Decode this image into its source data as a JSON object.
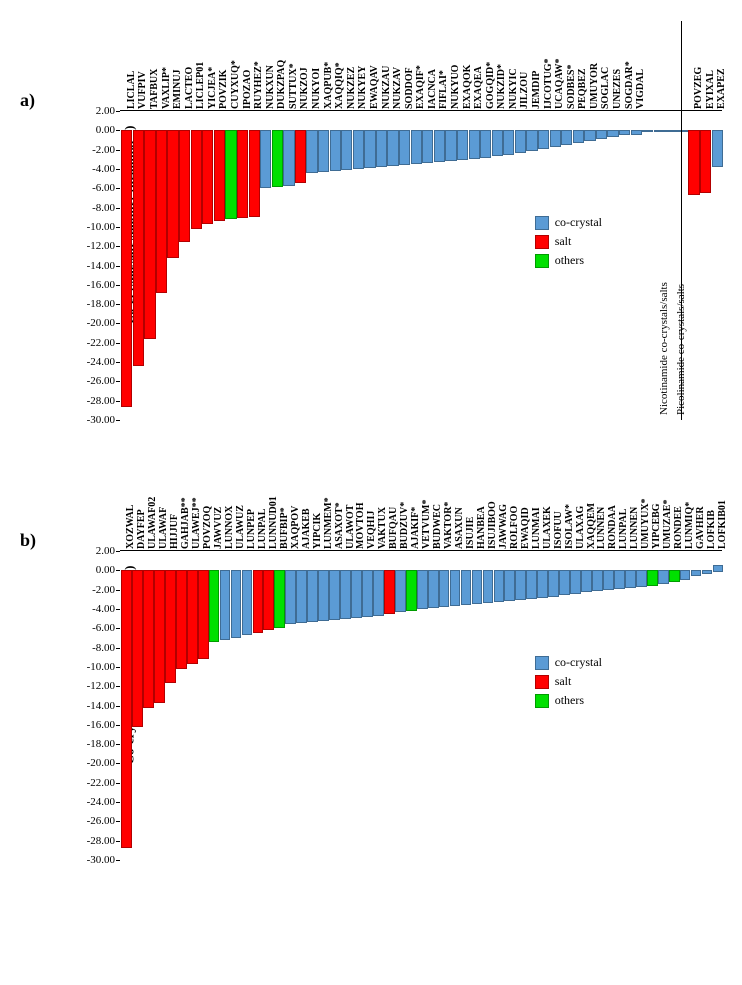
{
  "colors": {
    "co_crystal": "#5b9bd5",
    "salt": "#ff0000",
    "others": "#00e000",
    "axis": "#000000",
    "background": "#ffffff"
  },
  "legend": [
    {
      "label": "co-crystal",
      "color_key": "co_crystal"
    },
    {
      "label": "salt",
      "color_key": "salt"
    },
    {
      "label": "others",
      "color_key": "others"
    }
  ],
  "y_axis": {
    "label": "Co-crystal/salt stability (kcal.mol⁻¹)",
    "min": -30,
    "max": 2,
    "ticks": [
      2.0,
      0.0,
      -2.0,
      -4.0,
      -6.0,
      -8.0,
      -10.0,
      -12.0,
      -14.0,
      -16.0,
      -18.0,
      -20.0,
      -22.0,
      -24.0,
      -26.0,
      -28.0,
      -30.0
    ],
    "label_fontsize": 13,
    "tick_fontsize": 11
  },
  "category_label_fontsize": 10,
  "chart_a": {
    "panel_label": "a)",
    "divider_after_index": 48,
    "section_labels": [
      {
        "text": "Nicotinamide co-crystals/salts",
        "at_index": 47.5
      },
      {
        "text": "Picolinamide co-crystals/salts",
        "at_index": 49
      }
    ],
    "bars": [
      {
        "label": "LICLAL",
        "value": -28.4,
        "cat": "salt"
      },
      {
        "label": "VUFPIV",
        "value": -24.2,
        "cat": "salt"
      },
      {
        "label": "TAFBUX",
        "value": -21.4,
        "cat": "salt"
      },
      {
        "label": "VAXLIP*",
        "value": -16.6,
        "cat": "salt"
      },
      {
        "label": "EMINUJ",
        "value": -13.0,
        "cat": "salt"
      },
      {
        "label": "LACTEO",
        "value": -11.4,
        "cat": "salt"
      },
      {
        "label": "LICLEP01",
        "value": -10.0,
        "cat": "salt"
      },
      {
        "label": "YICJEA*",
        "value": -9.5,
        "cat": "salt"
      },
      {
        "label": "POVZIK",
        "value": -9.2,
        "cat": "salt"
      },
      {
        "label": "CUYXUQ*",
        "value": -9.0,
        "cat": "others"
      },
      {
        "label": "IPOZAO",
        "value": -8.9,
        "cat": "salt"
      },
      {
        "label": "RUYHEZ*",
        "value": -8.8,
        "cat": "salt"
      },
      {
        "label": "NUKXUN",
        "value": -5.8,
        "cat": "co_crystal"
      },
      {
        "label": "DUKZPAQ",
        "value": -5.7,
        "cat": "others"
      },
      {
        "label": "SUTTUX*",
        "value": -5.6,
        "cat": "co_crystal"
      },
      {
        "label": "NUKZOJ",
        "value": -5.2,
        "cat": "salt"
      },
      {
        "label": "NUKYOI",
        "value": -4.2,
        "cat": "co_crystal"
      },
      {
        "label": "XAQPUB*",
        "value": -4.1,
        "cat": "co_crystal"
      },
      {
        "label": "XAQQIQ*",
        "value": -4.0,
        "cat": "co_crystal"
      },
      {
        "label": "NUKZEZ",
        "value": -3.9,
        "cat": "co_crystal"
      },
      {
        "label": "NUKYEY",
        "value": -3.8,
        "cat": "co_crystal"
      },
      {
        "label": "EWAQAV",
        "value": -3.7,
        "cat": "co_crystal"
      },
      {
        "label": "NUKZAU",
        "value": -3.6,
        "cat": "co_crystal"
      },
      {
        "label": "NUKZAV",
        "value": -3.5,
        "cat": "co_crystal"
      },
      {
        "label": "SODDOF",
        "value": -3.4,
        "cat": "co_crystal"
      },
      {
        "label": "EXAQIF*",
        "value": -3.3,
        "cat": "co_crystal"
      },
      {
        "label": "IACNCA",
        "value": -3.2,
        "cat": "co_crystal"
      },
      {
        "label": "FIFLAI*",
        "value": -3.1,
        "cat": "co_crystal"
      },
      {
        "label": "NUKYUO",
        "value": -3.0,
        "cat": "co_crystal"
      },
      {
        "label": "EXAQOK",
        "value": -2.9,
        "cat": "co_crystal"
      },
      {
        "label": "EXAQEA",
        "value": -2.8,
        "cat": "co_crystal"
      },
      {
        "label": "GOGQID*",
        "value": -2.7,
        "cat": "co_crystal"
      },
      {
        "label": "NUKZID*",
        "value": -2.5,
        "cat": "co_crystal"
      },
      {
        "label": "NUKYIC",
        "value": -2.3,
        "cat": "co_crystal"
      },
      {
        "label": "JILZOU",
        "value": -2.1,
        "cat": "co_crystal"
      },
      {
        "label": "JEMDIP",
        "value": -1.9,
        "cat": "co_crystal"
      },
      {
        "label": "IJCOTUG*",
        "value": -1.7,
        "cat": "co_crystal"
      },
      {
        "label": "UCAQAW*",
        "value": -1.5,
        "cat": "co_crystal"
      },
      {
        "label": "SODBES*",
        "value": -1.3,
        "cat": "co_crystal"
      },
      {
        "label": "PEQBEZ",
        "value": -1.1,
        "cat": "co_crystal"
      },
      {
        "label": "UMUYOR",
        "value": -0.9,
        "cat": "co_crystal"
      },
      {
        "label": "SOGLAC",
        "value": -0.7,
        "cat": "co_crystal"
      },
      {
        "label": "UNEZES",
        "value": -0.5,
        "cat": "co_crystal"
      },
      {
        "label": "SOGDAR*",
        "value": -0.3,
        "cat": "co_crystal"
      },
      {
        "label": "VIGDAL",
        "value": -0.3,
        "cat": "co_crystal"
      },
      {
        "label": "",
        "value": 0.0,
        "cat": "co_crystal"
      },
      {
        "label": "",
        "value": 0.0,
        "cat": "co_crystal"
      },
      {
        "label": "",
        "value": 0.0,
        "cat": "co_crystal"
      },
      {
        "label": "",
        "value": 0.0,
        "cat": "co_crystal"
      },
      {
        "label": "POVZEG",
        "value": -6.5,
        "cat": "salt"
      },
      {
        "label": "EYIXAL",
        "value": -6.3,
        "cat": "salt"
      },
      {
        "label": "EXAPEZ",
        "value": -3.6,
        "cat": "co_crystal"
      }
    ]
  },
  "chart_b": {
    "panel_label": "b)",
    "bars": [
      {
        "label": "XOZWAL",
        "value": -28.6,
        "cat": "salt"
      },
      {
        "label": "DAYFEP",
        "value": -16.0,
        "cat": "salt"
      },
      {
        "label": "ULAWAF02",
        "value": -14.0,
        "cat": "salt"
      },
      {
        "label": "ULAWAF",
        "value": -13.5,
        "cat": "salt"
      },
      {
        "label": "HIJJUF",
        "value": -11.5,
        "cat": "salt"
      },
      {
        "label": "GAHJAB**",
        "value": -10.0,
        "cat": "salt"
      },
      {
        "label": "ULAWEJ**",
        "value": -9.5,
        "cat": "salt"
      },
      {
        "label": "POVZOQ",
        "value": -9.0,
        "cat": "salt"
      },
      {
        "label": "JAWVUZ",
        "value": -7.2,
        "cat": "others"
      },
      {
        "label": "LUNNOX",
        "value": -7.0,
        "cat": "co_crystal"
      },
      {
        "label": "ULAWUZ",
        "value": -6.8,
        "cat": "co_crystal"
      },
      {
        "label": "LUNPEP",
        "value": -6.5,
        "cat": "co_crystal"
      },
      {
        "label": "LUNPAL",
        "value": -6.3,
        "cat": "salt"
      },
      {
        "label": "LUNNUD01",
        "value": -6.0,
        "cat": "salt"
      },
      {
        "label": "BUFBIP*",
        "value": -5.8,
        "cat": "others"
      },
      {
        "label": "XAQPOV",
        "value": -5.4,
        "cat": "co_crystal"
      },
      {
        "label": "AJAKEB",
        "value": -5.2,
        "cat": "co_crystal"
      },
      {
        "label": "YIPCIK",
        "value": -5.1,
        "cat": "co_crystal"
      },
      {
        "label": "LUNMEM*",
        "value": -5.0,
        "cat": "co_crystal"
      },
      {
        "label": "ASAXOT*",
        "value": -4.9,
        "cat": "co_crystal"
      },
      {
        "label": "ULAWOT",
        "value": -4.8,
        "cat": "co_crystal"
      },
      {
        "label": "MOVTOH",
        "value": -4.7,
        "cat": "co_crystal"
      },
      {
        "label": "VEQHIJ",
        "value": -4.6,
        "cat": "co_crystal"
      },
      {
        "label": "VAKTUX",
        "value": -4.5,
        "cat": "co_crystal"
      },
      {
        "label": "BUFQAU",
        "value": -4.3,
        "cat": "salt"
      },
      {
        "label": "BUDZUV*",
        "value": -4.1,
        "cat": "co_crystal"
      },
      {
        "label": "AJAKIF*",
        "value": -4.0,
        "cat": "others"
      },
      {
        "label": "VETVUM*",
        "value": -3.8,
        "cat": "co_crystal"
      },
      {
        "label": "BUDWEC",
        "value": -3.7,
        "cat": "co_crystal"
      },
      {
        "label": "VAKTOR*",
        "value": -3.6,
        "cat": "co_crystal"
      },
      {
        "label": "ASAXUN",
        "value": -3.5,
        "cat": "co_crystal"
      },
      {
        "label": "ISUJIE",
        "value": -3.4,
        "cat": "co_crystal"
      },
      {
        "label": "HANBEA",
        "value": -3.3,
        "cat": "co_crystal"
      },
      {
        "label": "ISUJIBOO",
        "value": -3.2,
        "cat": "co_crystal"
      },
      {
        "label": "JAWWAG",
        "value": -3.1,
        "cat": "co_crystal"
      },
      {
        "label": "ROLFOO",
        "value": -3.0,
        "cat": "co_crystal"
      },
      {
        "label": "EWAQID",
        "value": -2.9,
        "cat": "co_crystal"
      },
      {
        "label": "LUNMAI",
        "value": -2.8,
        "cat": "co_crystal"
      },
      {
        "label": "ULAXEK",
        "value": -2.7,
        "cat": "co_crystal"
      },
      {
        "label": "ISOFUU",
        "value": -2.6,
        "cat": "co_crystal"
      },
      {
        "label": "ISOLAW*",
        "value": -2.4,
        "cat": "co_crystal"
      },
      {
        "label": "ULAXAG",
        "value": -2.2,
        "cat": "co_crystal"
      },
      {
        "label": "XAQQEM",
        "value": -2.0,
        "cat": "co_crystal"
      },
      {
        "label": "LUNNEN",
        "value": -1.9,
        "cat": "co_crystal"
      },
      {
        "label": "RONDAA",
        "value": -1.8,
        "cat": "co_crystal"
      },
      {
        "label": "LUNPAL",
        "value": -1.7,
        "cat": "co_crystal"
      },
      {
        "label": "LUNNEN",
        "value": -1.6,
        "cat": "co_crystal"
      },
      {
        "label": "UMUYUX*",
        "value": -1.5,
        "cat": "co_crystal"
      },
      {
        "label": "YIPCEBG",
        "value": -1.4,
        "cat": "others"
      },
      {
        "label": "UMUZAE*",
        "value": -1.2,
        "cat": "co_crystal"
      },
      {
        "label": "RONDEE",
        "value": -1.0,
        "cat": "others"
      },
      {
        "label": "LUNMIQ*",
        "value": -0.8,
        "cat": "co_crystal"
      },
      {
        "label": "GAVHER",
        "value": -0.4,
        "cat": "co_crystal"
      },
      {
        "label": "LOFKIB",
        "value": -0.2,
        "cat": "co_crystal"
      },
      {
        "label": "LOFKIB01",
        "value": 0.5,
        "cat": "co_crystal"
      }
    ]
  }
}
